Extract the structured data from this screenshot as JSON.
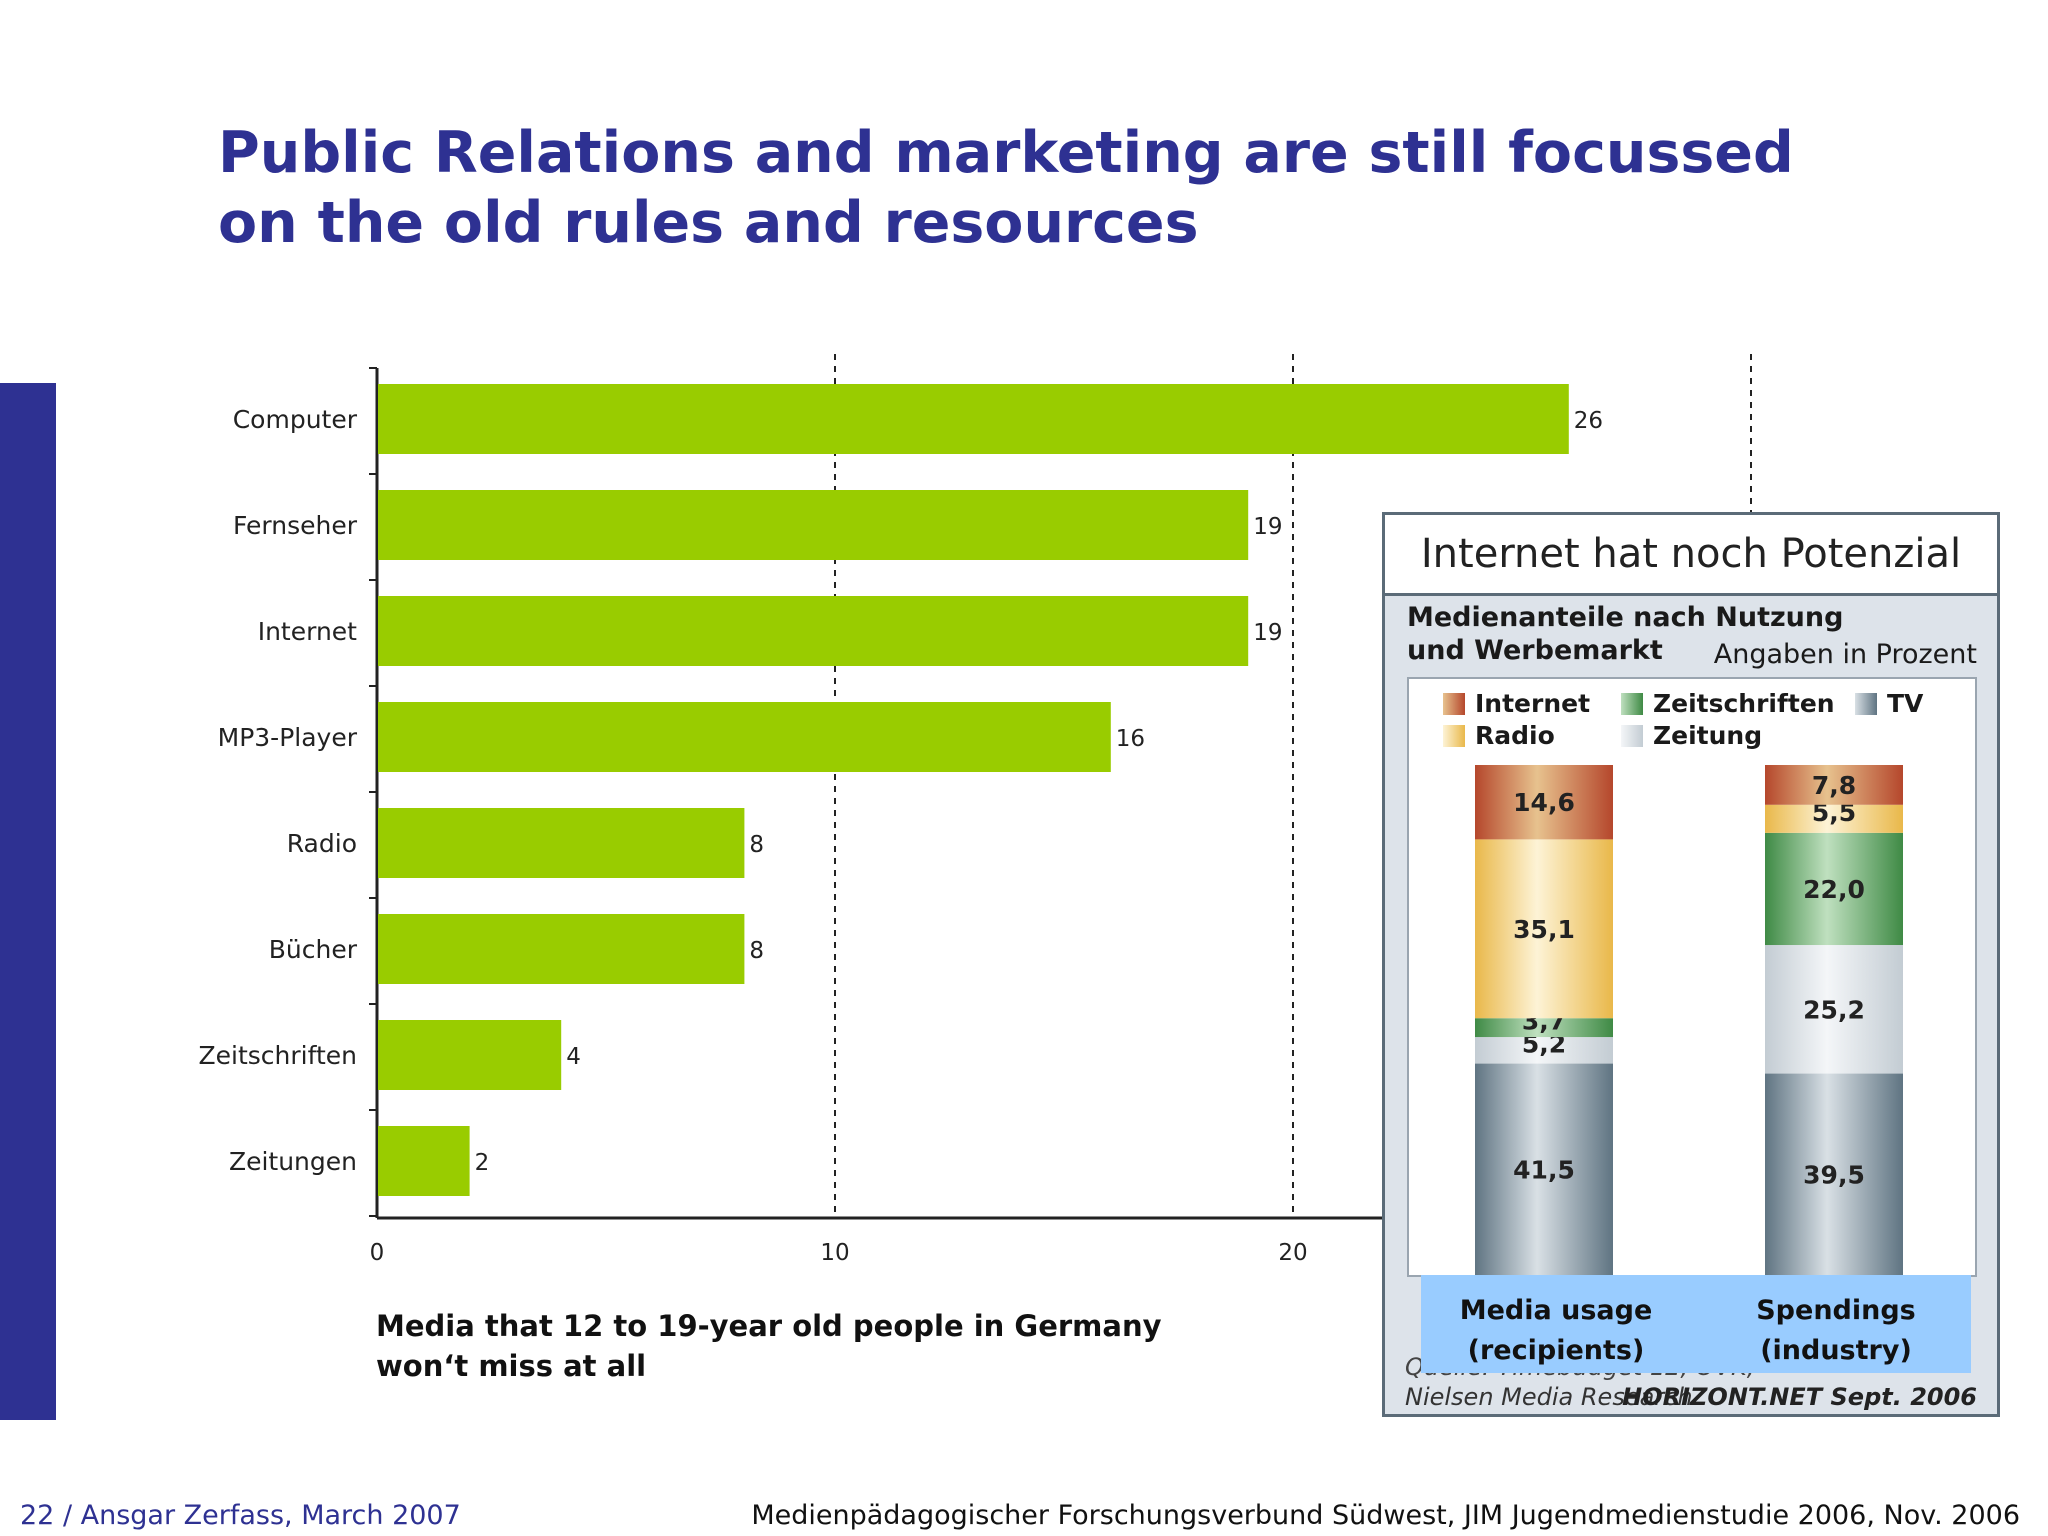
{
  "slide": {
    "title_line1": "Public Relations and marketing are still focussed",
    "title_line2": "on the old rules and resources",
    "caption_line1": "Media that 12 to 19-year old people in Germany",
    "caption_line2": "won‘t miss at all",
    "footer_left": "22 / Ansgar Zerfass, March 2007",
    "footer_right": "Medienpädagogischer Forschungsverbund Südwest, JIM Jugendmedienstudie 2006, Nov. 2006",
    "accent_color": "#2E3192"
  },
  "chart_data": [
    {
      "type": "bar",
      "orientation": "horizontal",
      "categories": [
        "Computer",
        "Fernseher",
        "Internet",
        "MP3-Player",
        "Radio",
        "Bücher",
        "Zeitschriften",
        "Zeitungen"
      ],
      "values": [
        26,
        19,
        19,
        16,
        8,
        8,
        4,
        2
      ],
      "data_labels": [
        "26",
        "19",
        "19",
        "16",
        "8",
        "8",
        "4",
        "2"
      ],
      "xticks": [
        "0",
        "10",
        "20"
      ],
      "xlim": [
        0,
        30
      ],
      "grid": "dashed vertical at 10, 20, 30",
      "bar_color": "#99CC00"
    },
    {
      "type": "bar",
      "stacked": true,
      "title": "Internet hat noch Potenzial",
      "subtitle_line1": "Medienanteile nach Nutzung",
      "subtitle_line2": "und Werbemarkt",
      "unit_note": "Angaben in Prozent",
      "categories_line1": [
        "Media usage",
        "Spendings"
      ],
      "categories_line2": [
        "(recipients)",
        "(industry)"
      ],
      "legend": {
        "internet": "Internet",
        "radio": "Radio",
        "zeitschriften": "Zeitschriften",
        "zeitung": "Zeitung",
        "tv": "TV"
      },
      "legend_placement": "top-left",
      "series": [
        {
          "key": "tv",
          "colors": [
            "#5f7482",
            "#d9e0e5"
          ],
          "values": [
            41.5,
            39.5
          ],
          "labels": [
            "41,5",
            "39,5"
          ]
        },
        {
          "key": "zeitung",
          "colors": [
            "#c3ccd3",
            "#f4f6f8"
          ],
          "values": [
            5.2,
            25.2
          ],
          "labels": [
            "5,2",
            "25,2"
          ]
        },
        {
          "key": "zeitschriften",
          "colors": [
            "#3f8a45",
            "#bfe0bf"
          ],
          "values": [
            3.7,
            22.0
          ],
          "labels": [
            "3,7",
            "22,0"
          ]
        },
        {
          "key": "radio",
          "colors": [
            "#e9b84a",
            "#fdf3d6"
          ],
          "values": [
            35.1,
            5.5
          ],
          "labels": [
            "35,1",
            "5,5"
          ]
        },
        {
          "key": "internet",
          "colors": [
            "#b5472c",
            "#e7c28e"
          ],
          "values": [
            14.6,
            7.8
          ],
          "labels": [
            "14,6",
            "7,8"
          ]
        }
      ],
      "source_line1": "Quelle: Timebudget 12, OVK,",
      "source_line2": "Nielsen Media Research",
      "source_publisher": "HORIZONT.NET Sept. 2006"
    }
  ]
}
